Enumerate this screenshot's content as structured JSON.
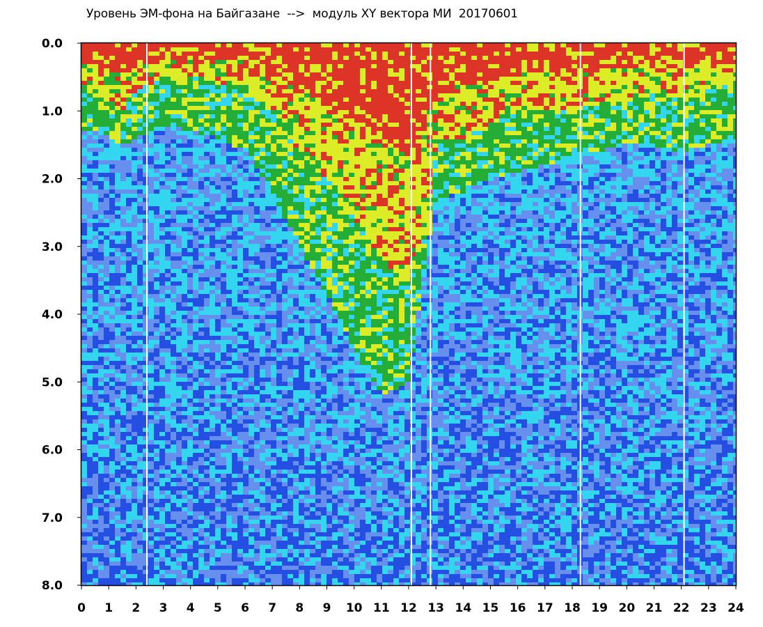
{
  "title": "Уровень ЭМ-фона на Байгазане  -->  модуль XY вектора МИ  20170601",
  "chart_data": {
    "type": "heatmap",
    "title": "Уровень ЭМ-фона на Байгазане  -->  модуль XY вектора МИ  20170601",
    "xlabel": "",
    "ylabel": "",
    "xlim": [
      0,
      24
    ],
    "ylim": [
      0,
      8
    ],
    "y_inverted": true,
    "x_ticks": [
      "0",
      "1",
      "2",
      "3",
      "4",
      "5",
      "6",
      "7",
      "8",
      "9",
      "10",
      "11",
      "12",
      "13",
      "14",
      "15",
      "16",
      "17",
      "18",
      "19",
      "20",
      "21",
      "22",
      "23",
      "24"
    ],
    "y_ticks": [
      "0.0",
      "1.0",
      "2.0",
      "3.0",
      "4.0",
      "5.0",
      "6.0",
      "7.0",
      "8.0"
    ],
    "colormap": [
      "#2222dd",
      "#7a78ee",
      "#33d6ee",
      "#22aa22",
      "#eeee11",
      "#ee2211"
    ],
    "intensity_profile": {
      "hours": [
        0,
        0.5,
        1,
        1.5,
        2,
        3,
        4,
        5,
        6,
        7,
        8,
        9,
        10,
        11,
        12,
        12.5,
        13,
        14,
        15,
        16,
        17,
        18,
        19,
        20,
        21,
        22,
        23,
        24
      ],
      "top_level_depth": [
        0.6,
        0.7,
        0.9,
        1.0,
        0.7,
        0.5,
        0.5,
        0.6,
        0.6,
        1.0,
        1.6,
        2.0,
        2.6,
        3.2,
        3.6,
        3.0,
        1.5,
        1.4,
        1.2,
        1.0,
        1.0,
        1.0,
        0.9,
        0.8,
        0.7,
        0.8,
        0.7,
        0.6
      ],
      "green_to_cyan_depth": [
        1.3,
        1.3,
        1.4,
        1.5,
        1.4,
        1.2,
        1.3,
        1.4,
        1.6,
        2.2,
        3.0,
        3.7,
        4.5,
        5.2,
        5.0,
        3.5,
        2.3,
        2.2,
        2.0,
        1.9,
        1.8,
        1.7,
        1.6,
        1.5,
        1.5,
        1.6,
        1.5,
        1.4
      ]
    },
    "gaps_hours": [
      2.4,
      12.1,
      12.8,
      18.3,
      22.1
    ],
    "legend": "none",
    "grid": false
  }
}
